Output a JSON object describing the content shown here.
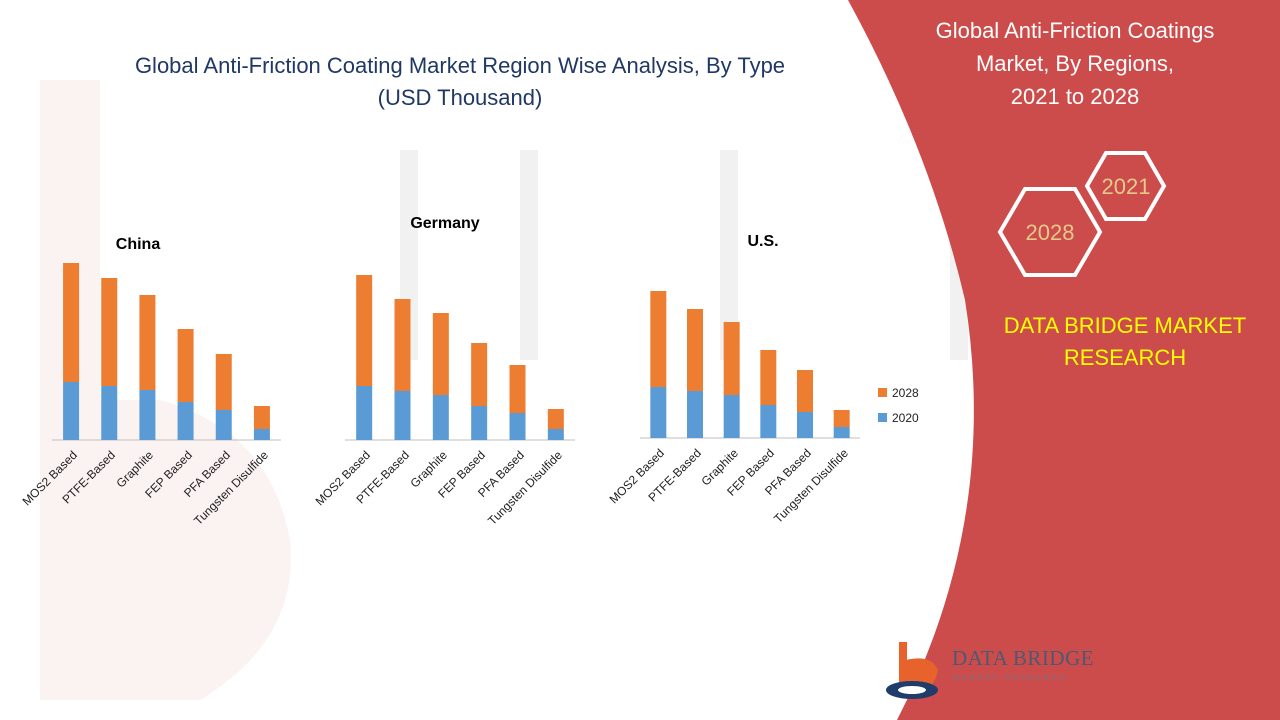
{
  "main_title_line1": "Global Anti-Friction Coating Market Region Wise Analysis, By Type",
  "main_title_line2": "(USD Thousand)",
  "side_panel": {
    "title_line1": "Global Anti-Friction Coatings",
    "title_line2": "Market, By Regions,",
    "title_line3": "2021 to 2028",
    "hex_year_a": "2021",
    "hex_year_b": "2028",
    "brand_line1": "DATA BRIDGE MARKET",
    "brand_line2": "RESEARCH",
    "panel_color": "#cc4b4b"
  },
  "logo": {
    "name": "DATA BRIDGE",
    "tagline": "MARKET RESEARCH",
    "icon": "data-bridge-logo-icon"
  },
  "legend": [
    "2028",
    "2020"
  ],
  "colors": {
    "2020": "#5b9bd5",
    "2028": "#ed7d31"
  },
  "chart_data": [
    {
      "type": "bar",
      "stacked": true,
      "title": "China",
      "categories": [
        "MOS2 Based",
        "PTFE-Based",
        "Graphite",
        "FEP Based",
        "PFA Based",
        "Tungsten Disulfide"
      ],
      "series": [
        {
          "name": "2020",
          "values": [
            58,
            54,
            50,
            38,
            30,
            11
          ]
        },
        {
          "name": "2028",
          "values": [
            119,
            108,
            95,
            73,
            56,
            23
          ]
        }
      ],
      "ylim": [
        0,
        180
      ]
    },
    {
      "type": "bar",
      "stacked": true,
      "title": "Germany",
      "categories": [
        "MOS2 Based",
        "PTFE-Based",
        "Graphite",
        "FEP Based",
        "PFA Based",
        "Tungsten Disulfide"
      ],
      "series": [
        {
          "name": "2020",
          "values": [
            54,
            49,
            45,
            34,
            27,
            11
          ]
        },
        {
          "name": "2028",
          "values": [
            111,
            92,
            82,
            63,
            48,
            20
          ]
        }
      ],
      "ylim": [
        0,
        180
      ]
    },
    {
      "type": "bar",
      "stacked": true,
      "title": "U.S.",
      "categories": [
        "MOS2 Based",
        "PTFE-Based",
        "Graphite",
        "FEP Based",
        "PFA Based",
        "Tungsten Disulfide"
      ],
      "series": [
        {
          "name": "2020",
          "values": [
            51,
            47,
            43,
            33,
            26,
            11
          ]
        },
        {
          "name": "2028",
          "values": [
            96,
            82,
            73,
            55,
            42,
            17
          ]
        }
      ],
      "ylim": [
        0,
        180
      ]
    }
  ]
}
